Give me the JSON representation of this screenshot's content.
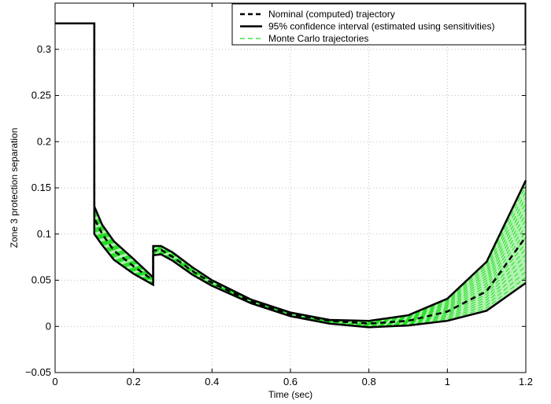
{
  "chart_data": {
    "type": "line",
    "xlabel": "Time (sec)",
    "ylabel": "Zone 3 protection separation",
    "xlim": [
      0,
      1.2
    ],
    "ylim": [
      -0.05,
      0.35
    ],
    "xticks": [
      "0",
      "0.2",
      "0.4",
      "0.6",
      "0.8",
      "1",
      "1.2"
    ],
    "yticks": [
      "−0.05",
      "0",
      "0.05",
      "0.1",
      "0.15",
      "0.2",
      "0.25",
      "0.3"
    ],
    "grid": true,
    "legend_position": "top-right",
    "colors": {
      "nominal": "#000000",
      "confidence": "#000000",
      "montecarlo": "#22dd22"
    },
    "series": [
      {
        "name": "Nominal (computed) trajectory",
        "style": "dashed",
        "x": [
          0,
          0.1,
          0.1,
          0.12,
          0.15,
          0.2,
          0.25,
          0.25,
          0.27,
          0.3,
          0.35,
          0.4,
          0.5,
          0.6,
          0.7,
          0.8,
          0.9,
          1.0,
          1.1,
          1.2
        ],
        "y": [
          0.328,
          0.328,
          0.117,
          0.1,
          0.082,
          0.065,
          0.05,
          0.082,
          0.083,
          0.075,
          0.06,
          0.047,
          0.027,
          0.013,
          0.006,
          0.003,
          0.006,
          0.016,
          0.038,
          0.097
        ]
      },
      {
        "name": "95% confidence interval (estimated using sensitivities)",
        "style": "solid",
        "upper": {
          "x": [
            0,
            0.1,
            0.1,
            0.12,
            0.15,
            0.2,
            0.25,
            0.25,
            0.27,
            0.3,
            0.35,
            0.4,
            0.5,
            0.6,
            0.7,
            0.8,
            0.9,
            1.0,
            1.1,
            1.2
          ],
          "y": [
            0.328,
            0.328,
            0.13,
            0.11,
            0.092,
            0.073,
            0.053,
            0.087,
            0.087,
            0.08,
            0.064,
            0.05,
            0.029,
            0.015,
            0.007,
            0.006,
            0.012,
            0.03,
            0.07,
            0.158
          ]
        },
        "lower": {
          "x": [
            0,
            0.1,
            0.1,
            0.12,
            0.15,
            0.2,
            0.25,
            0.25,
            0.27,
            0.3,
            0.35,
            0.4,
            0.5,
            0.6,
            0.7,
            0.8,
            0.9,
            1.0,
            1.1,
            1.2
          ],
          "y": [
            0.328,
            0.328,
            0.1,
            0.088,
            0.072,
            0.057,
            0.045,
            0.077,
            0.078,
            0.071,
            0.056,
            0.044,
            0.025,
            0.011,
            0.003,
            -0.001,
            0.001,
            0.006,
            0.017,
            0.047
          ]
        }
      },
      {
        "name": "Monte Carlo trajectories",
        "style": "dashed",
        "note_band": "spread between confidence bounds"
      }
    ]
  }
}
